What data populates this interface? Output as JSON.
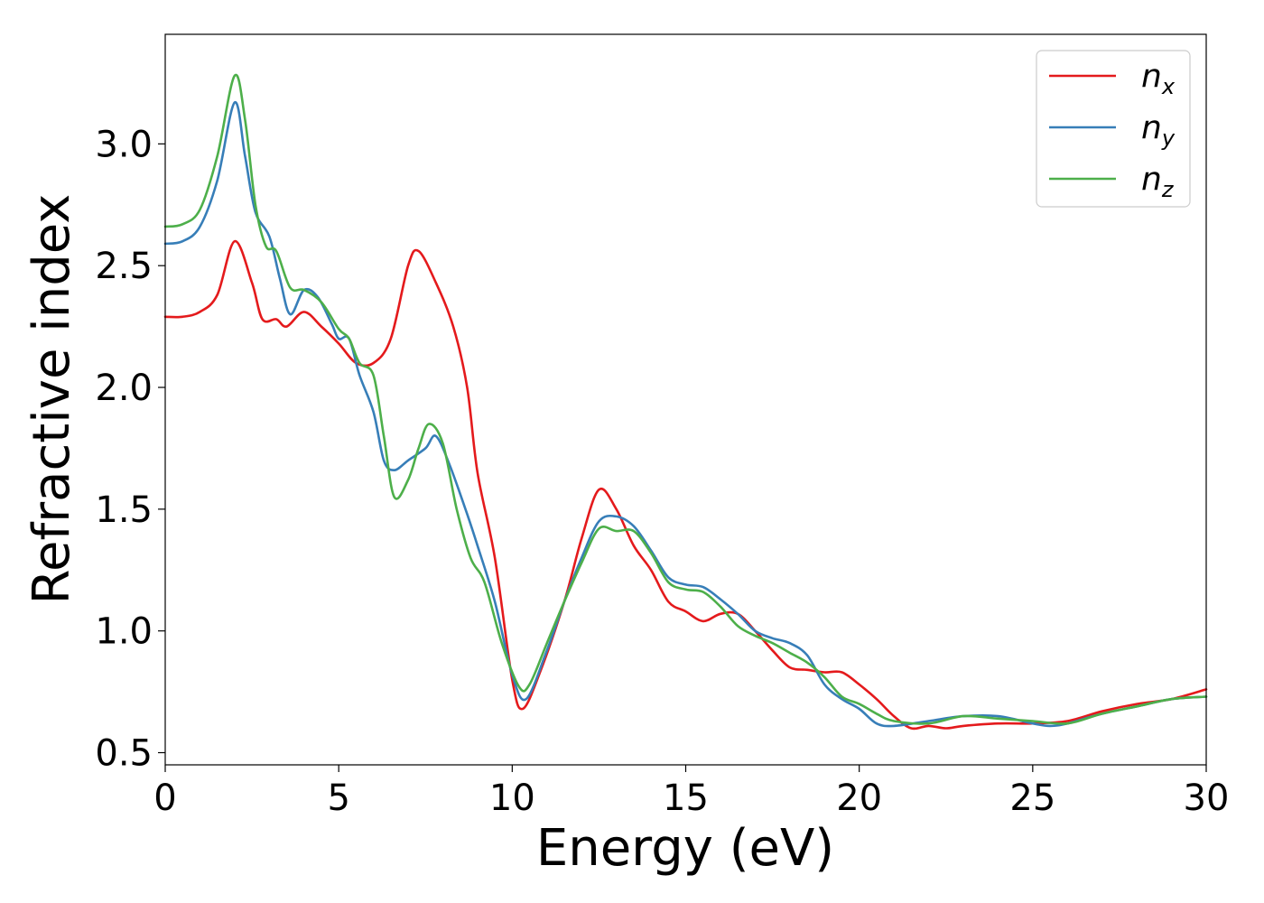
{
  "chart_data": {
    "type": "line",
    "title": "",
    "xlabel": "Energy (eV)",
    "ylabel": "Refractive index",
    "xlim": [
      0,
      30
    ],
    "ylim": [
      0.45,
      3.45
    ],
    "xticks": [
      0,
      5,
      10,
      15,
      20,
      25,
      30
    ],
    "xtick_labels": [
      "0",
      "5",
      "10",
      "15",
      "20",
      "25",
      "30"
    ],
    "yticks": [
      0.5,
      1.0,
      1.5,
      2.0,
      2.5,
      3.0
    ],
    "ytick_labels": [
      "0.5",
      "1.0",
      "1.5",
      "2.0",
      "2.5",
      "3.0"
    ],
    "grid": false,
    "legend_position": "top-right",
    "series": [
      {
        "name": "n",
        "sub": "x",
        "color": "#e41a1c",
        "points": [
          [
            0,
            2.29
          ],
          [
            0.5,
            2.29
          ],
          [
            1,
            2.31
          ],
          [
            1.5,
            2.38
          ],
          [
            2,
            2.6
          ],
          [
            2.5,
            2.43
          ],
          [
            2.8,
            2.28
          ],
          [
            3.2,
            2.28
          ],
          [
            3.5,
            2.25
          ],
          [
            4,
            2.31
          ],
          [
            4.5,
            2.25
          ],
          [
            5,
            2.18
          ],
          [
            5.5,
            2.1
          ],
          [
            6,
            2.1
          ],
          [
            6.5,
            2.2
          ],
          [
            7,
            2.5
          ],
          [
            7.3,
            2.56
          ],
          [
            7.8,
            2.43
          ],
          [
            8.3,
            2.25
          ],
          [
            8.7,
            2.0
          ],
          [
            9,
            1.65
          ],
          [
            9.5,
            1.3
          ],
          [
            10,
            0.8
          ],
          [
            10.3,
            0.68
          ],
          [
            10.8,
            0.83
          ],
          [
            11.5,
            1.12
          ],
          [
            12,
            1.38
          ],
          [
            12.5,
            1.58
          ],
          [
            13,
            1.5
          ],
          [
            13.5,
            1.35
          ],
          [
            14,
            1.25
          ],
          [
            14.5,
            1.12
          ],
          [
            15,
            1.08
          ],
          [
            15.5,
            1.04
          ],
          [
            16,
            1.07
          ],
          [
            16.5,
            1.07
          ],
          [
            17,
            1.0
          ],
          [
            17.5,
            0.92
          ],
          [
            18,
            0.85
          ],
          [
            18.5,
            0.84
          ],
          [
            19,
            0.83
          ],
          [
            19.5,
            0.83
          ],
          [
            20,
            0.78
          ],
          [
            20.5,
            0.72
          ],
          [
            21,
            0.65
          ],
          [
            21.5,
            0.6
          ],
          [
            22,
            0.61
          ],
          [
            22.5,
            0.6
          ],
          [
            23,
            0.61
          ],
          [
            24,
            0.62
          ],
          [
            25,
            0.62
          ],
          [
            26,
            0.63
          ],
          [
            27,
            0.67
          ],
          [
            28,
            0.7
          ],
          [
            29,
            0.72
          ],
          [
            30,
            0.76
          ]
        ]
      },
      {
        "name": "n",
        "sub": "y",
        "color": "#377eb8",
        "points": [
          [
            0,
            2.59
          ],
          [
            0.5,
            2.6
          ],
          [
            1,
            2.66
          ],
          [
            1.5,
            2.85
          ],
          [
            2,
            3.17
          ],
          [
            2.3,
            2.95
          ],
          [
            2.6,
            2.72
          ],
          [
            3,
            2.62
          ],
          [
            3.3,
            2.45
          ],
          [
            3.6,
            2.3
          ],
          [
            4,
            2.4
          ],
          [
            4.4,
            2.37
          ],
          [
            4.8,
            2.26
          ],
          [
            5,
            2.2
          ],
          [
            5.3,
            2.2
          ],
          [
            5.6,
            2.05
          ],
          [
            6,
            1.9
          ],
          [
            6.3,
            1.7
          ],
          [
            6.6,
            1.66
          ],
          [
            7,
            1.7
          ],
          [
            7.5,
            1.75
          ],
          [
            7.8,
            1.8
          ],
          [
            8.2,
            1.68
          ],
          [
            8.7,
            1.48
          ],
          [
            9,
            1.35
          ],
          [
            9.5,
            1.12
          ],
          [
            10,
            0.82
          ],
          [
            10.4,
            0.72
          ],
          [
            11,
            0.92
          ],
          [
            11.5,
            1.12
          ],
          [
            12,
            1.3
          ],
          [
            12.5,
            1.45
          ],
          [
            13,
            1.47
          ],
          [
            13.5,
            1.43
          ],
          [
            14,
            1.33
          ],
          [
            14.5,
            1.22
          ],
          [
            15,
            1.19
          ],
          [
            15.5,
            1.18
          ],
          [
            16,
            1.13
          ],
          [
            16.5,
            1.07
          ],
          [
            17,
            1.0
          ],
          [
            17.5,
            0.97
          ],
          [
            18,
            0.95
          ],
          [
            18.5,
            0.9
          ],
          [
            19,
            0.78
          ],
          [
            19.5,
            0.72
          ],
          [
            20,
            0.68
          ],
          [
            20.5,
            0.62
          ],
          [
            21,
            0.61
          ],
          [
            22,
            0.63
          ],
          [
            23,
            0.65
          ],
          [
            24,
            0.65
          ],
          [
            25,
            0.62
          ],
          [
            25.5,
            0.61
          ],
          [
            26,
            0.62
          ],
          [
            27,
            0.66
          ],
          [
            28,
            0.69
          ],
          [
            29,
            0.72
          ],
          [
            30,
            0.73
          ]
        ]
      },
      {
        "name": "n",
        "sub": "z",
        "color": "#4daf4a",
        "points": [
          [
            0,
            2.66
          ],
          [
            0.5,
            2.67
          ],
          [
            1,
            2.73
          ],
          [
            1.5,
            2.95
          ],
          [
            2,
            3.28
          ],
          [
            2.3,
            3.1
          ],
          [
            2.6,
            2.75
          ],
          [
            2.9,
            2.58
          ],
          [
            3.2,
            2.56
          ],
          [
            3.6,
            2.41
          ],
          [
            4,
            2.4
          ],
          [
            4.5,
            2.35
          ],
          [
            5,
            2.24
          ],
          [
            5.3,
            2.2
          ],
          [
            5.6,
            2.1
          ],
          [
            6,
            2.05
          ],
          [
            6.3,
            1.8
          ],
          [
            6.6,
            1.55
          ],
          [
            7,
            1.62
          ],
          [
            7.3,
            1.75
          ],
          [
            7.6,
            1.85
          ],
          [
            8,
            1.77
          ],
          [
            8.4,
            1.5
          ],
          [
            8.8,
            1.3
          ],
          [
            9.2,
            1.2
          ],
          [
            9.7,
            0.95
          ],
          [
            10.2,
            0.77
          ],
          [
            10.5,
            0.78
          ],
          [
            11,
            0.95
          ],
          [
            11.5,
            1.12
          ],
          [
            12,
            1.28
          ],
          [
            12.5,
            1.42
          ],
          [
            13,
            1.41
          ],
          [
            13.5,
            1.41
          ],
          [
            14,
            1.32
          ],
          [
            14.5,
            1.2
          ],
          [
            15,
            1.17
          ],
          [
            15.5,
            1.16
          ],
          [
            16,
            1.1
          ],
          [
            16.5,
            1.02
          ],
          [
            17,
            0.98
          ],
          [
            17.5,
            0.95
          ],
          [
            18,
            0.91
          ],
          [
            18.5,
            0.87
          ],
          [
            19,
            0.81
          ],
          [
            19.5,
            0.73
          ],
          [
            20,
            0.7
          ],
          [
            20.5,
            0.66
          ],
          [
            21,
            0.63
          ],
          [
            22,
            0.62
          ],
          [
            23,
            0.65
          ],
          [
            24,
            0.64
          ],
          [
            25,
            0.63
          ],
          [
            26,
            0.62
          ],
          [
            27,
            0.66
          ],
          [
            28,
            0.69
          ],
          [
            29,
            0.72
          ],
          [
            30,
            0.73
          ]
        ]
      }
    ]
  }
}
